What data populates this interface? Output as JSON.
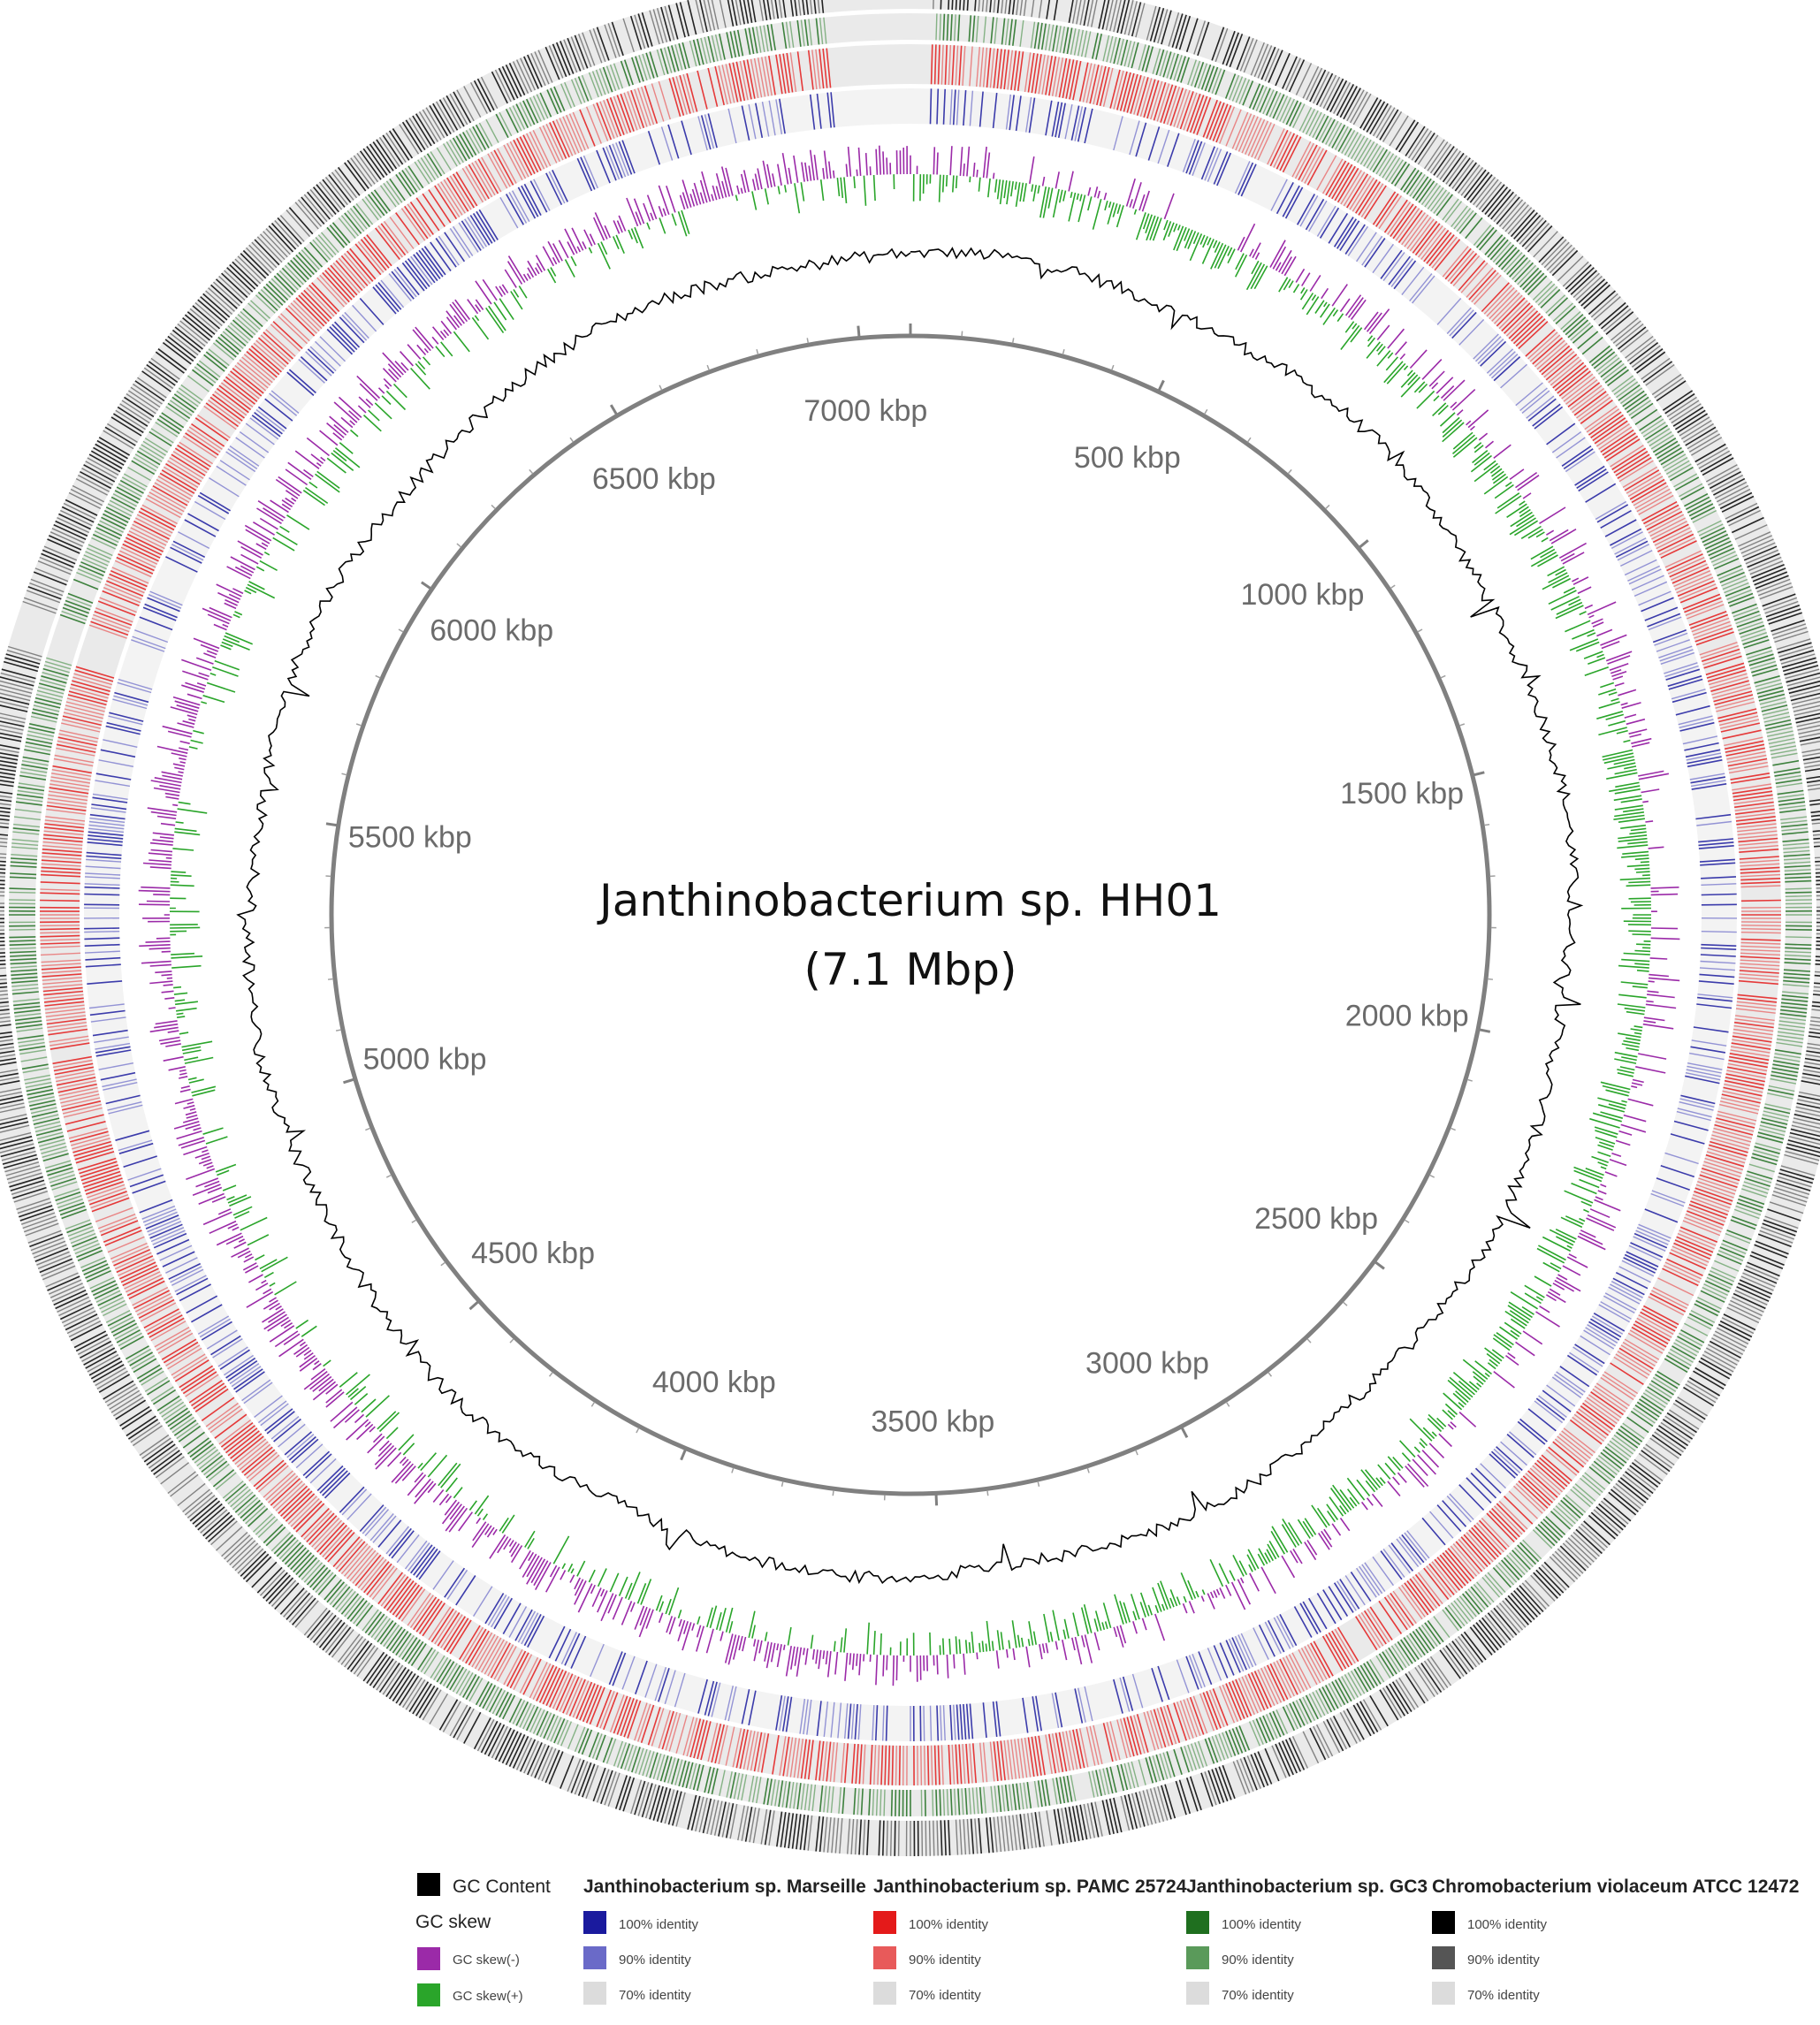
{
  "title_line1": "Janthinobacterium sp. HH01",
  "title_line2": "(7.1 Mbp)",
  "genome_length_kbp": 7100,
  "tick_labels": [
    {
      "kbp": 0,
      "label": ""
    },
    {
      "kbp": 500,
      "label": "500 kbp"
    },
    {
      "kbp": 1000,
      "label": "1000 kbp"
    },
    {
      "kbp": 1500,
      "label": "1500 kbp"
    },
    {
      "kbp": 2000,
      "label": "2000 kbp"
    },
    {
      "kbp": 2500,
      "label": "2500 kbp"
    },
    {
      "kbp": 3000,
      "label": "3000 kbp"
    },
    {
      "kbp": 3500,
      "label": "3500 kbp"
    },
    {
      "kbp": 4000,
      "label": "4000 kbp"
    },
    {
      "kbp": 4500,
      "label": "4500 kbp"
    },
    {
      "kbp": 5000,
      "label": "5000 kbp"
    },
    {
      "kbp": 5500,
      "label": "5500 kbp"
    },
    {
      "kbp": 6000,
      "label": "6000 kbp"
    },
    {
      "kbp": 6500,
      "label": "6500 kbp"
    },
    {
      "kbp": 7000,
      "label": "7000 kbp"
    }
  ],
  "colors": {
    "gc_content": "#000000",
    "gc_skew_neg": "#9b2aa8",
    "gc_skew_pos": "#2aa52a",
    "backbone": "#808080"
  },
  "legend": {
    "gc_content": {
      "label": "GC Content",
      "color": "#000000"
    },
    "gc_skew": {
      "label": "GC skew",
      "items": [
        {
          "label": "GC skew(-)",
          "color": "#9b2aa8"
        },
        {
          "label": "GC skew(+)",
          "color": "#2aa52a"
        }
      ]
    },
    "genomes": [
      {
        "name": "Janthinobacterium sp. Marseille",
        "items": [
          {
            "label": "100% identity",
            "color": "#1a1a9e"
          },
          {
            "label": "90% identity",
            "color": "#6a6ac8"
          },
          {
            "label": "70% identity",
            "color": "#dcdcdc"
          }
        ]
      },
      {
        "name": "Janthinobacterium sp. PAMC 25724",
        "items": [
          {
            "label": "100% identity",
            "color": "#e41a1a"
          },
          {
            "label": "90% identity",
            "color": "#e85a5a"
          },
          {
            "label": "70% identity",
            "color": "#dcdcdc"
          }
        ]
      },
      {
        "name": "Janthinobacterium sp. GC3",
        "items": [
          {
            "label": "100% identity",
            "color": "#1f6f1f"
          },
          {
            "label": "90% identity",
            "color": "#5a9a5a"
          },
          {
            "label": "70% identity",
            "color": "#dcdcdc"
          }
        ]
      },
      {
        "name": "Chromobacterium violaceum ATCC 12472",
        "items": [
          {
            "label": "100% identity",
            "color": "#000000"
          },
          {
            "label": "90% identity",
            "color": "#555555"
          },
          {
            "label": "70% identity",
            "color": "#dcdcdc"
          }
        ]
      }
    ]
  }
}
